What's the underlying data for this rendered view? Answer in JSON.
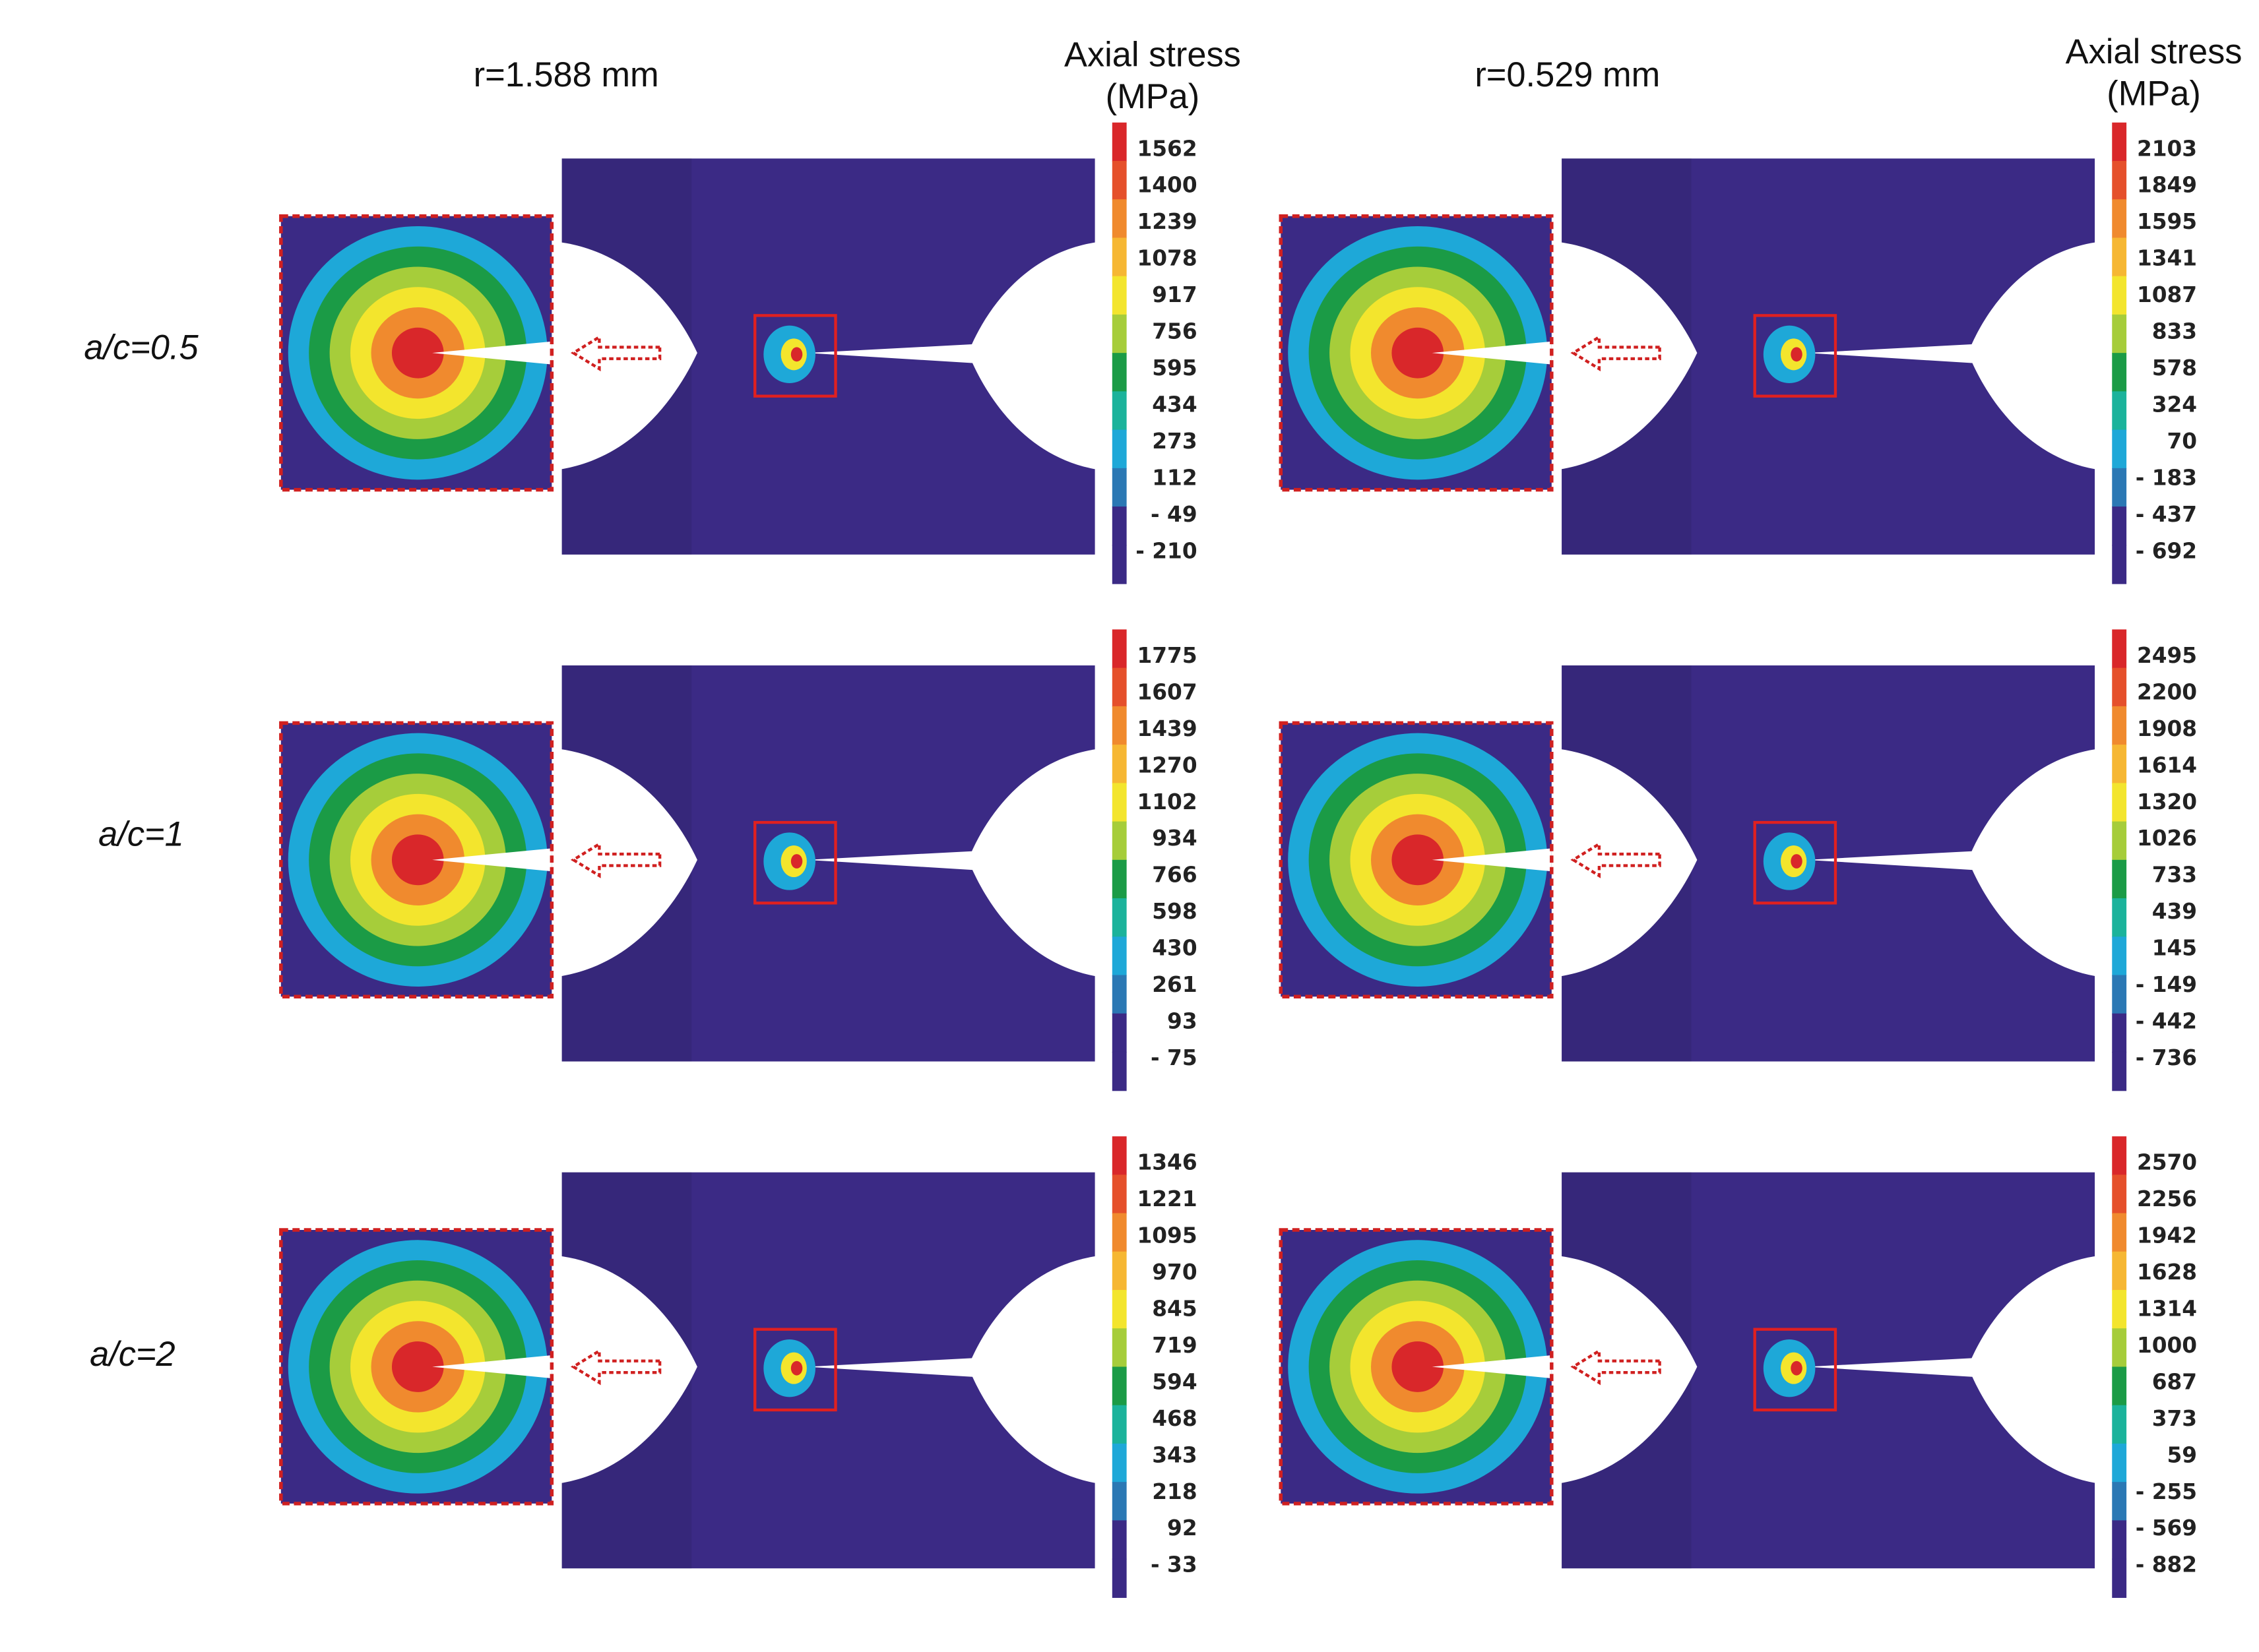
{
  "columns": [
    {
      "title": "r=1.588 mm",
      "colorbar_title": [
        "Axial stress",
        "(MPa)"
      ]
    },
    {
      "title": "r=0.529 mm",
      "colorbar_title": [
        "Axial stress",
        "(MPa)"
      ]
    }
  ],
  "rows": [
    {
      "label": "a/c=0.5"
    },
    {
      "label": "a/c=1"
    },
    {
      "label": "a/c=2"
    }
  ],
  "panels": [
    [
      {
        "ticks": [
          "1562",
          "1400",
          "1239",
          "1078",
          "917",
          "756",
          "595",
          "434",
          "273",
          "112",
          "- 49",
          "- 210"
        ]
      },
      {
        "ticks": [
          "2103",
          "1849",
          "1595",
          "1341",
          "1087",
          "833",
          "578",
          "324",
          "70",
          "- 183",
          "- 437",
          "- 692"
        ]
      }
    ],
    [
      {
        "ticks": [
          "1775",
          "1607",
          "1439",
          "1270",
          "1102",
          "934",
          "766",
          "598",
          "430",
          "261",
          "93",
          "- 75"
        ]
      },
      {
        "ticks": [
          "2495",
          "2200",
          "1908",
          "1614",
          "1320",
          "1026",
          "733",
          "439",
          "145",
          "- 149",
          "- 442",
          "- 736"
        ]
      }
    ],
    [
      {
        "ticks": [
          "1346",
          "1221",
          "1095",
          "970",
          "845",
          "719",
          "594",
          "468",
          "343",
          "218",
          "92",
          "- 33"
        ]
      },
      {
        "ticks": [
          "2570",
          "2256",
          "1942",
          "1628",
          "1314",
          "1000",
          "687",
          "373",
          "59",
          "- 255",
          "- 569",
          "- 882"
        ]
      }
    ]
  ]
}
